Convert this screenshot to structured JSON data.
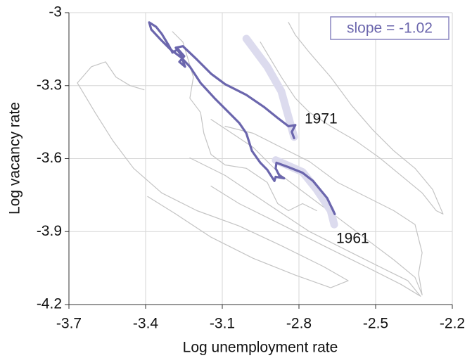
{
  "chart_data": {
    "type": "line",
    "xlabel": "Log unemployment rate",
    "ylabel": "Log vacancy rate",
    "xlim": [
      -3.7,
      -2.2
    ],
    "ylim": [
      -4.2,
      -3
    ],
    "xticks": [
      -3.7,
      -3.4,
      -3.1,
      -2.8,
      -2.5,
      -2.2
    ],
    "yticks": [
      -3,
      -3.3,
      -3.6,
      -3.9,
      -4.2
    ],
    "grid": true,
    "annotations": [
      "1971",
      "1961"
    ],
    "slope_label": "slope = -1.02",
    "series": [
      {
        "color": "#c4c4c4",
        "x": [
          -3.406,
          -3.461,
          -3.516,
          -3.557,
          -3.612,
          -3.667,
          -3.598,
          -3.529,
          -3.447,
          -3.337,
          -3.199,
          -3.034,
          -2.869,
          -2.704,
          -2.607,
          -2.676,
          -2.814,
          -2.979,
          -3.144,
          -3.282,
          -3.392
        ],
        "values": [
          -3.317,
          -3.3,
          -3.265,
          -3.202,
          -3.222,
          -3.289,
          -3.41,
          -3.525,
          -3.64,
          -3.741,
          -3.814,
          -3.877,
          -3.958,
          -4.044,
          -4.102,
          -4.131,
          -4.079,
          -4.01,
          -3.923,
          -3.828,
          -3.756
        ]
      },
      {
        "color": "#c4c4c4",
        "x": [
          -2.841,
          -2.814,
          -2.759,
          -2.676,
          -2.594,
          -2.511,
          -2.429,
          -2.346,
          -2.277,
          -2.236,
          -2.263,
          -2.318,
          -2.401,
          -2.484,
          -2.58,
          -2.676,
          -2.759,
          -2.814,
          -2.869,
          -2.91,
          -2.951
        ],
        "values": [
          -3.04,
          -3.092,
          -3.164,
          -3.265,
          -3.381,
          -3.482,
          -3.568,
          -3.64,
          -3.727,
          -3.828,
          -3.814,
          -3.741,
          -3.669,
          -3.597,
          -3.525,
          -3.467,
          -3.41,
          -3.352,
          -3.265,
          -3.193,
          -3.121
        ]
      },
      {
        "color": "#c4c4c4",
        "x": [
          -3.144,
          -3.062,
          -2.979,
          -2.869,
          -2.759,
          -2.649,
          -2.539,
          -2.429,
          -2.346,
          -2.318,
          -2.332,
          -2.318,
          -2.346,
          -2.429,
          -2.539,
          -2.649,
          -2.759,
          -2.869,
          -2.979,
          -3.089
        ],
        "values": [
          -3.439,
          -3.496,
          -3.554,
          -3.669,
          -3.756,
          -3.842,
          -3.929,
          -4.016,
          -4.088,
          -4.16,
          -4.073,
          -3.987,
          -3.871,
          -3.814,
          -3.756,
          -3.698,
          -3.612,
          -3.554,
          -3.496,
          -3.467
        ]
      },
      {
        "color": "#c4c4c4",
        "x": [
          -3.227,
          -3.089,
          -2.924,
          -2.759,
          -2.594,
          -2.457,
          -2.374,
          -2.324,
          -2.401,
          -2.539,
          -2.704,
          -2.869,
          -3.034,
          -3.144
        ],
        "values": [
          -3.597,
          -3.669,
          -3.785,
          -3.9,
          -3.987,
          -4.059,
          -4.102,
          -4.166,
          -4.117,
          -4.044,
          -3.958,
          -3.871,
          -3.785,
          -3.713
        ]
      },
      {
        "color": "#c4c4c4",
        "x": [
          -3.295,
          -3.254,
          -3.213,
          -3.227,
          -3.185,
          -3.172,
          -3.144,
          -3.089,
          -3.006,
          -2.924,
          -2.883,
          -2.841,
          -2.786,
          -2.731
        ],
        "values": [
          -3.078,
          -3.121,
          -3.265,
          -3.352,
          -3.41,
          -3.496,
          -3.583,
          -3.626,
          -3.64,
          -3.698,
          -3.785,
          -3.814,
          -3.785,
          -3.814
        ]
      },
      {
        "color": "#dcdbee",
        "x": [
          -3.006,
          -2.924,
          -2.869,
          -2.819
        ],
        "values": [
          -3.107,
          -3.222,
          -3.323,
          -3.511
        ]
      },
      {
        "color": "#dcdbee",
        "x": [
          -2.891,
          -2.786,
          -2.731,
          -2.676,
          -2.662
        ],
        "values": [
          -3.606,
          -3.655,
          -3.727,
          -3.814,
          -3.871
        ]
      },
      {
        "color": "#6b66ad",
        "x": [
          -2.66,
          -2.69,
          -2.745,
          -2.786,
          -2.841,
          -2.888,
          -2.891,
          -2.877,
          -2.858,
          -2.891,
          -2.896,
          -2.924,
          -2.951,
          -2.984,
          -3.006,
          -3.034,
          -3.075,
          -3.13,
          -3.185,
          -3.227,
          -3.26,
          -3.304,
          -3.342,
          -3.378,
          -3.386,
          -3.359,
          -3.337,
          -3.309,
          -3.295,
          -3.273,
          -3.249,
          -3.268,
          -3.246,
          -3.262,
          -3.282,
          -3.254,
          -3.199,
          -3.144,
          -3.089,
          -3.006,
          -2.938,
          -2.883,
          -2.841,
          -2.814,
          -2.828,
          -2.819
        ],
        "values": [
          -3.828,
          -3.762,
          -3.692,
          -3.658,
          -3.635,
          -3.617,
          -3.64,
          -3.669,
          -3.681,
          -3.675,
          -3.692,
          -3.646,
          -3.617,
          -3.568,
          -3.496,
          -3.453,
          -3.41,
          -3.352,
          -3.289,
          -3.222,
          -3.185,
          -3.15,
          -3.11,
          -3.069,
          -3.04,
          -3.058,
          -3.087,
          -3.136,
          -3.164,
          -3.15,
          -3.179,
          -3.202,
          -3.222,
          -3.173,
          -3.144,
          -3.138,
          -3.193,
          -3.251,
          -3.294,
          -3.338,
          -3.387,
          -3.433,
          -3.467,
          -3.462,
          -3.49,
          -3.516
        ]
      }
    ]
  }
}
